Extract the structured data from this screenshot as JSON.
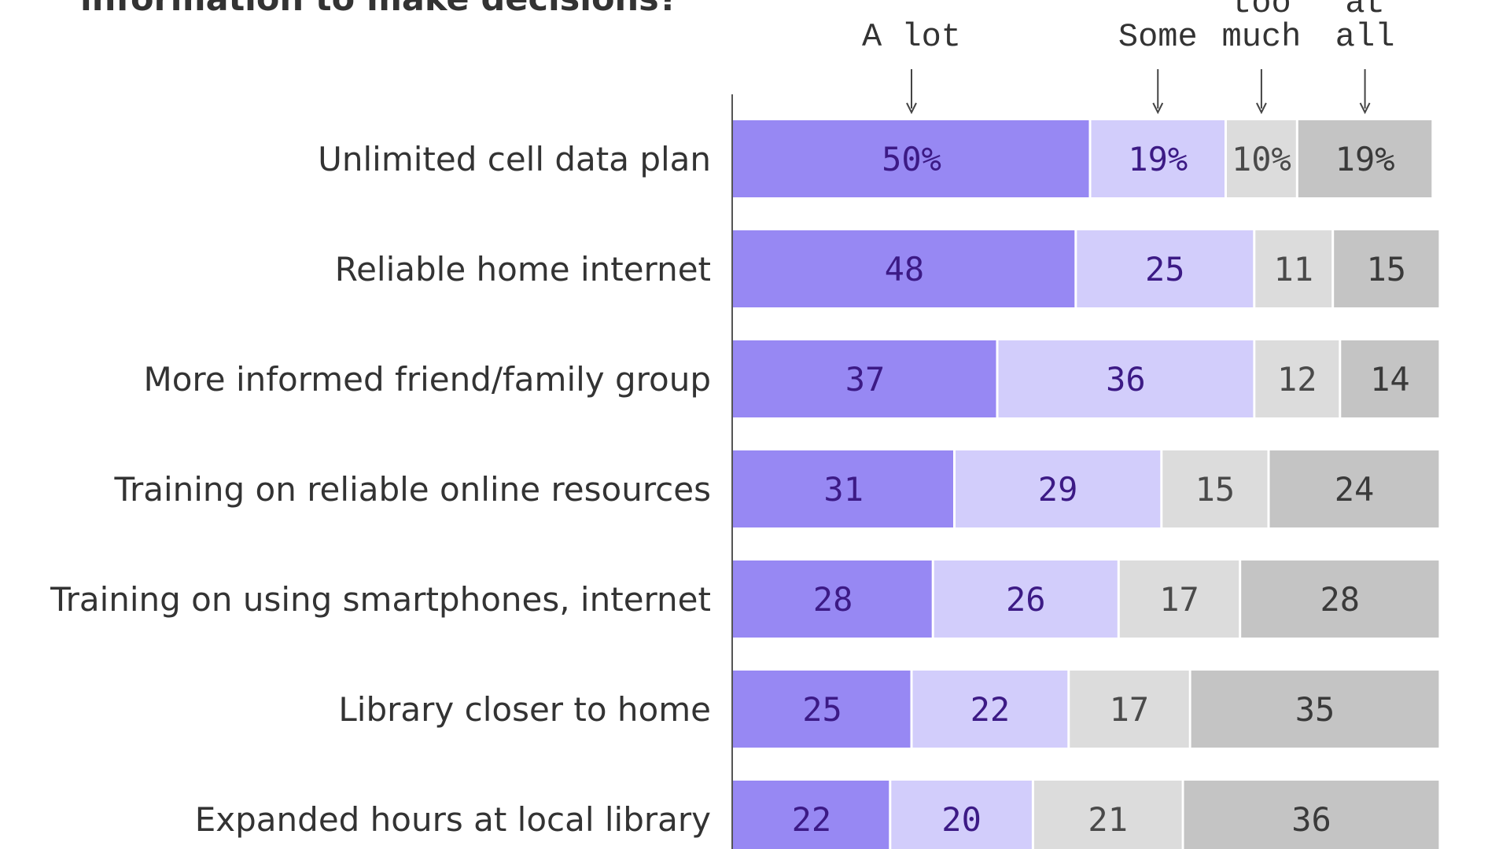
{
  "chart_data": {
    "type": "bar",
    "orientation": "horizontal",
    "stacked": true,
    "title": "information to make decisions?",
    "categories": [
      "Unlimited cell data plan",
      "Reliable home internet",
      "More informed friend/family group",
      "Training on reliable online resources",
      "Training on using smartphones, internet",
      "Library closer to home",
      "Expanded hours at local library"
    ],
    "series": [
      {
        "name": "A lot",
        "values": [
          50,
          48,
          37,
          31,
          28,
          25,
          22
        ]
      },
      {
        "name": "Some",
        "values": [
          19,
          25,
          36,
          29,
          26,
          22,
          20
        ]
      },
      {
        "name": "too much",
        "values": [
          10,
          11,
          12,
          15,
          17,
          17,
          21
        ]
      },
      {
        "name": "at all",
        "values": [
          19,
          15,
          14,
          24,
          28,
          35,
          36
        ]
      }
    ],
    "segment_text": [
      [
        "50%",
        "19%",
        "10%",
        "19%"
      ],
      [
        "48",
        "25",
        "11",
        "15"
      ],
      [
        "37",
        "36",
        "12",
        "14"
      ],
      [
        "31",
        "29",
        "15",
        "24"
      ],
      [
        "28",
        "26",
        "17",
        "28"
      ],
      [
        "25",
        "22",
        "17",
        "35"
      ],
      [
        "22",
        "20",
        "21",
        "36"
      ]
    ],
    "legend_header_lines": [
      [
        "A lot"
      ],
      [
        "Some"
      ],
      [
        "too",
        "much"
      ],
      [
        "at",
        "all"
      ]
    ],
    "colors": [
      "#9788f3",
      "#d2cdfb",
      "#dcdcdc",
      "#c4c4c4"
    ],
    "label_colors": [
      "#3c1a85",
      "#3c1a85",
      "#4a4a4a",
      "#3a3a3a"
    ],
    "legend_placement": "top",
    "grid": false
  }
}
